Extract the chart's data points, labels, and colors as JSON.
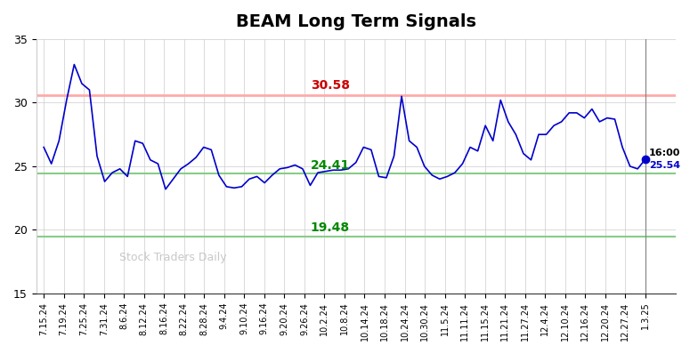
{
  "title": "BEAM Long Term Signals",
  "ylim": [
    15,
    35
  ],
  "yticks": [
    15,
    20,
    25,
    30,
    35
  ],
  "red_line": 30.58,
  "green_upper": 24.41,
  "green_lower": 19.48,
  "last_price": 25.54,
  "last_label": "16:00",
  "watermark": "Stock Traders Daily",
  "line_color": "#0000cc",
  "red_line_color": "#ffaaaa",
  "green_line_color": "#88cc88",
  "annotation_red_color": "#cc0000",
  "annotation_green_color": "#008800",
  "last_dot_color": "#0000cc",
  "x_labels": [
    "7.15.24",
    "7.19.24",
    "7.25.24",
    "7.31.24",
    "8.6.24",
    "8.12.24",
    "8.16.24",
    "8.22.24",
    "8.28.24",
    "9.4.24",
    "9.10.24",
    "9.16.24",
    "9.20.24",
    "9.26.24",
    "10.2.24",
    "10.8.24",
    "10.14.24",
    "10.18.24",
    "10.24.24",
    "10.30.24",
    "11.5.24",
    "11.11.24",
    "11.15.24",
    "11.21.24",
    "11.27.24",
    "12.4.24",
    "12.10.24",
    "12.16.24",
    "12.20.24",
    "12.27.24",
    "1.3.25"
  ],
  "prices": [
    26.5,
    25.2,
    27.0,
    30.2,
    33.0,
    31.5,
    31.0,
    25.8,
    23.8,
    24.5,
    24.8,
    24.2,
    27.0,
    26.8,
    25.5,
    25.2,
    23.2,
    24.0,
    24.8,
    25.2,
    25.7,
    26.5,
    26.3,
    24.3,
    23.4,
    23.3,
    23.4,
    24.0,
    24.2,
    23.7,
    24.3,
    24.8,
    24.9,
    25.1,
    24.8,
    23.5,
    24.5,
    24.6,
    24.7,
    24.7,
    24.8,
    25.3,
    26.5,
    26.3,
    24.2,
    24.1,
    25.8,
    30.5,
    27.0,
    26.5,
    25.0,
    24.3,
    24.0,
    24.2,
    24.5,
    25.2,
    26.5,
    26.2,
    28.2,
    27.0,
    30.2,
    28.5,
    27.5,
    26.0,
    25.5,
    27.5,
    27.5,
    28.2,
    28.5,
    29.2,
    29.2,
    28.8,
    29.5,
    28.5,
    28.8,
    28.7,
    26.5,
    25.0,
    24.8,
    25.54
  ]
}
